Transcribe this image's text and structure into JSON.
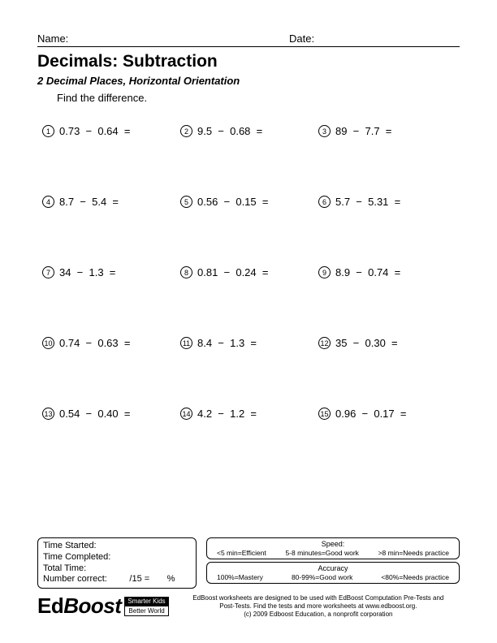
{
  "header": {
    "name_label": "Name:",
    "date_label": "Date:"
  },
  "title": "Decimals: Subtraction",
  "subtitle": "2 Decimal Places, Horizontal Orientation",
  "instruction": "Find the difference.",
  "op": "−",
  "eq": "=",
  "problems": [
    [
      {
        "n": "1",
        "a": "0.73",
        "b": "0.64"
      },
      {
        "n": "2",
        "a": "9.5",
        "b": "0.68"
      },
      {
        "n": "3",
        "a": "89",
        "b": "7.7"
      }
    ],
    [
      {
        "n": "4",
        "a": "8.7",
        "b": "5.4"
      },
      {
        "n": "5",
        "a": "0.56",
        "b": "0.15"
      },
      {
        "n": "6",
        "a": "5.7",
        "b": "5.31"
      }
    ],
    [
      {
        "n": "7",
        "a": "34",
        "b": "1.3"
      },
      {
        "n": "8",
        "a": "0.81",
        "b": "0.24"
      },
      {
        "n": "9",
        "a": "8.9",
        "b": "0.74"
      }
    ],
    [
      {
        "n": "10",
        "a": "0.74",
        "b": "0.63"
      },
      {
        "n": "11",
        "a": "8.4",
        "b": "1.3"
      },
      {
        "n": "12",
        "a": "35",
        "b": "0.30"
      }
    ],
    [
      {
        "n": "13",
        "a": "0.54",
        "b": "0.40"
      },
      {
        "n": "14",
        "a": "4.2",
        "b": "1.2"
      },
      {
        "n": "15",
        "a": "0.96",
        "b": "0.17"
      }
    ]
  ],
  "time_box": {
    "started": "Time Started:",
    "completed": "Time Completed:",
    "total": "Total Time:",
    "correct_prefix": "Number correct:",
    "correct_denom": "/15 =",
    "correct_pct": "%"
  },
  "speed": {
    "title": "Speed:",
    "a": "<5 min=Efficient",
    "b": "5-8 minutes=Good work",
    "c": ">8 min=Needs practice"
  },
  "accuracy": {
    "title": "Accuracy",
    "a": "100%=Mastery",
    "b": "80-99%=Good work",
    "c": "<80%=Needs practice"
  },
  "logo": {
    "ed": "Ed",
    "boost": "Boost",
    "tag_top": "Smarter Kids",
    "tag_bot": "Better World"
  },
  "footer": {
    "l1": "EdBoost worksheets are designed to be used with EdBoost Computation Pre-Tests and",
    "l2": "Post-Tests.  Find the tests and more worksheets at www.edboost.org.",
    "l3": "(c) 2009 Edboost Education, a nonprofit corporation"
  },
  "colors": {
    "text": "#000000",
    "bg": "#ffffff"
  }
}
